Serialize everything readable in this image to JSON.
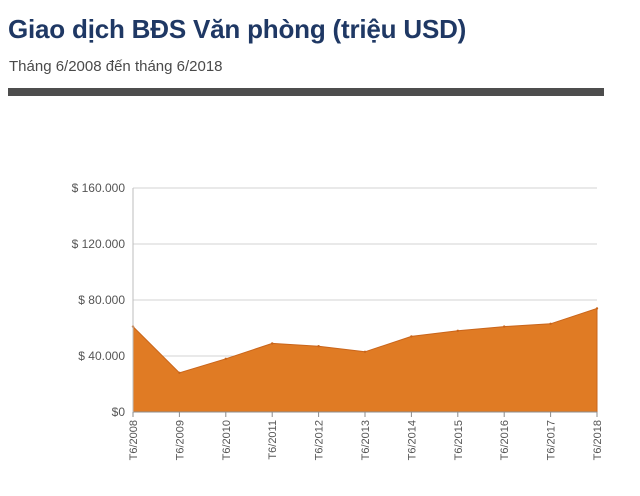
{
  "header": {
    "title": "Giao dịch BĐS Văn phòng (triệu USD)",
    "subtitle": "Tháng 6/2008 đến tháng 6/2018"
  },
  "colors": {
    "area_fill": "#e07b24",
    "area_edge": "#c9651b",
    "title": "#1f3864",
    "rule": "#4d4d4d",
    "grid": "#d3d3d3"
  },
  "chart_data": {
    "type": "area",
    "title": "Giao dịch BĐS Văn phòng (triệu USD)",
    "subtitle": "Tháng 6/2008 đến tháng 6/2018",
    "categories": [
      "T6/2008",
      "T6/2009",
      "T6/2010",
      "T6/2011",
      "T6/2012",
      "T6/2013",
      "T6/2014",
      "T6/2015",
      "T6/2016",
      "T6/2017",
      "T6/2018"
    ],
    "values": [
      61000,
      28000,
      38000,
      49000,
      47000,
      43000,
      54000,
      58000,
      61000,
      63000,
      74000
    ],
    "ylim": [
      0,
      160000
    ],
    "yticks": [
      0,
      40000,
      80000,
      120000,
      160000
    ],
    "ytick_labels": [
      "$0",
      "$ 40.000",
      "$ 80.000",
      "$ 120.000",
      "$ 160.000"
    ],
    "grid": true,
    "legend": "none"
  }
}
